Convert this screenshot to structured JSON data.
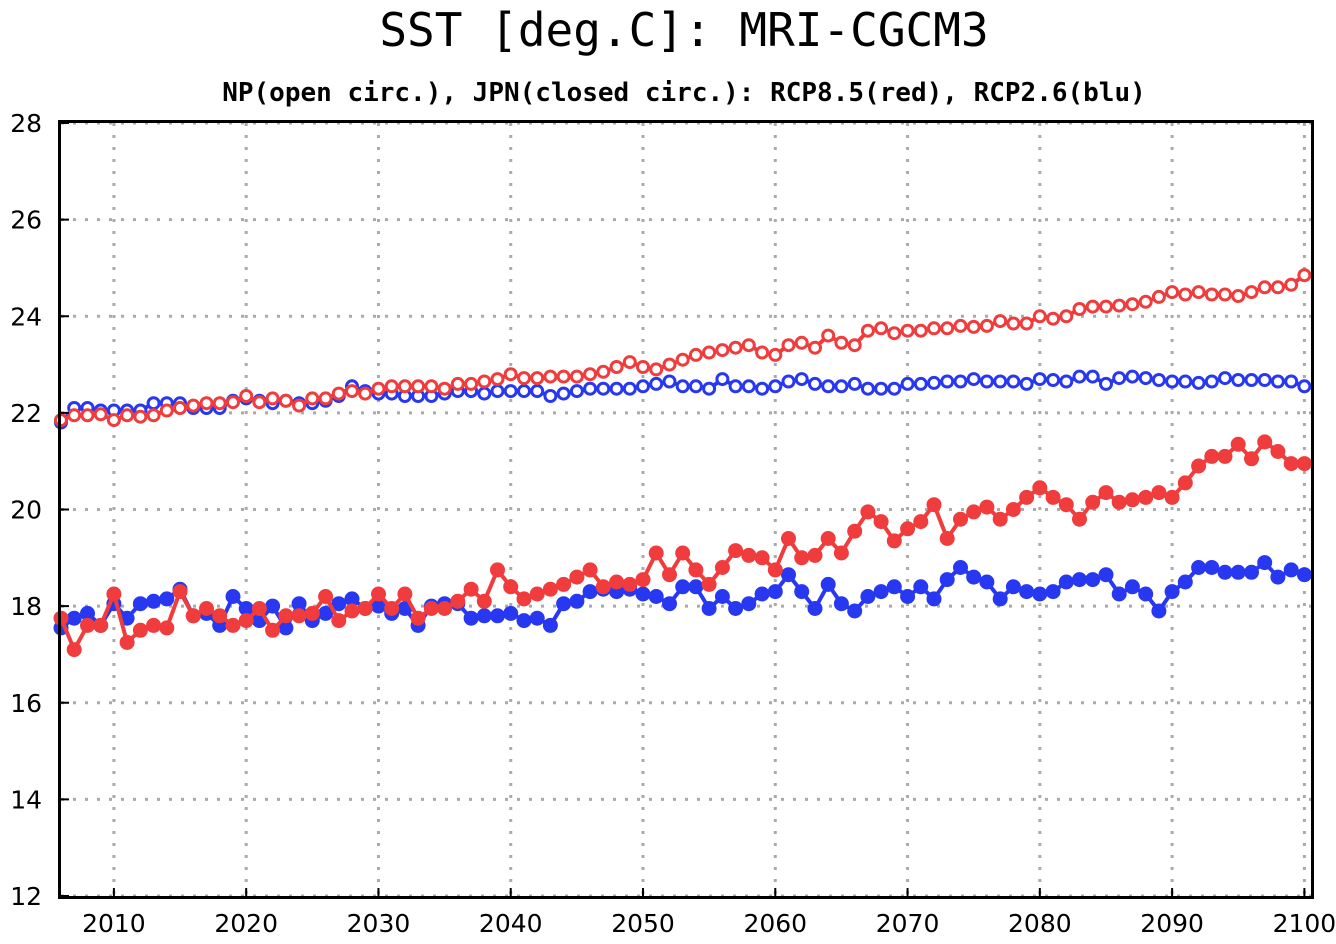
{
  "chart_data": {
    "type": "line",
    "title": "SST [deg.C]: MRI-CGCM3",
    "subtitle": "NP(open circ.), JPN(closed circ.): RCP8.5(red), RCP2.6(blu)",
    "xlabel": "",
    "ylabel": "",
    "xlim": [
      2006,
      2100.5
    ],
    "ylim": [
      12,
      28
    ],
    "grid": true,
    "legend": "none",
    "x_ticks": [
      "2010",
      "2020",
      "2030",
      "2040",
      "2050",
      "2060",
      "2070",
      "2080",
      "2090",
      "2100"
    ],
    "y_ticks": [
      "12",
      "14",
      "16",
      "18",
      "20",
      "22",
      "24",
      "26",
      "28"
    ],
    "colors": {
      "rcp85": "#f03c3c",
      "rcp26": "#2838f0",
      "grid": "#aaaaaa"
    },
    "x": [
      2006,
      2007,
      2008,
      2009,
      2010,
      2011,
      2012,
      2013,
      2014,
      2015,
      2016,
      2017,
      2018,
      2019,
      2020,
      2021,
      2022,
      2023,
      2024,
      2025,
      2026,
      2027,
      2028,
      2029,
      2030,
      2031,
      2032,
      2033,
      2034,
      2035,
      2036,
      2037,
      2038,
      2039,
      2040,
      2041,
      2042,
      2043,
      2044,
      2045,
      2046,
      2047,
      2048,
      2049,
      2050,
      2051,
      2052,
      2053,
      2054,
      2055,
      2056,
      2057,
      2058,
      2059,
      2060,
      2061,
      2062,
      2063,
      2064,
      2065,
      2066,
      2067,
      2068,
      2069,
      2070,
      2071,
      2072,
      2073,
      2074,
      2075,
      2076,
      2077,
      2078,
      2079,
      2080,
      2081,
      2082,
      2083,
      2084,
      2085,
      2086,
      2087,
      2088,
      2089,
      2090,
      2091,
      2092,
      2093,
      2094,
      2095,
      2096,
      2097,
      2098,
      2099,
      2100
    ],
    "series": [
      {
        "region": "NP",
        "scenario": "RCP8.5",
        "color": "#f03c3c",
        "marker": "open",
        "values": [
          21.85,
          21.95,
          21.95,
          21.97,
          21.85,
          21.95,
          21.92,
          21.95,
          22.05,
          22.1,
          22.15,
          22.2,
          22.2,
          22.22,
          22.35,
          22.22,
          22.3,
          22.25,
          22.15,
          22.3,
          22.3,
          22.4,
          22.45,
          22.4,
          22.5,
          22.55,
          22.55,
          22.55,
          22.55,
          22.5,
          22.6,
          22.6,
          22.65,
          22.7,
          22.8,
          22.72,
          22.72,
          22.75,
          22.75,
          22.75,
          22.8,
          22.85,
          22.95,
          23.05,
          22.95,
          22.9,
          23.0,
          23.1,
          23.2,
          23.25,
          23.3,
          23.35,
          23.4,
          23.25,
          23.2,
          23.4,
          23.45,
          23.35,
          23.6,
          23.45,
          23.4,
          23.7,
          23.75,
          23.65,
          23.7,
          23.7,
          23.75,
          23.75,
          23.8,
          23.78,
          23.8,
          23.9,
          23.85,
          23.85,
          24.0,
          23.95,
          24.0,
          24.15,
          24.2,
          24.2,
          24.22,
          24.25,
          24.3,
          24.4,
          24.5,
          24.45,
          24.5,
          24.45,
          24.45,
          24.42,
          24.5,
          24.6,
          24.6,
          24.65,
          24.85
        ]
      },
      {
        "region": "NP",
        "scenario": "RCP2.6",
        "color": "#2838f0",
        "marker": "open",
        "values": [
          21.8,
          22.1,
          22.1,
          22.05,
          22.05,
          22.05,
          22.05,
          22.2,
          22.2,
          22.2,
          22.1,
          22.1,
          22.1,
          22.25,
          22.3,
          22.25,
          22.2,
          22.25,
          22.2,
          22.2,
          22.25,
          22.35,
          22.55,
          22.45,
          22.4,
          22.4,
          22.35,
          22.35,
          22.35,
          22.4,
          22.45,
          22.45,
          22.4,
          22.45,
          22.45,
          22.45,
          22.45,
          22.35,
          22.4,
          22.45,
          22.5,
          22.5,
          22.5,
          22.5,
          22.55,
          22.6,
          22.65,
          22.55,
          22.55,
          22.5,
          22.7,
          22.55,
          22.55,
          22.5,
          22.55,
          22.65,
          22.7,
          22.6,
          22.55,
          22.55,
          22.6,
          22.5,
          22.5,
          22.5,
          22.6,
          22.6,
          22.62,
          22.65,
          22.65,
          22.7,
          22.65,
          22.65,
          22.65,
          22.6,
          22.7,
          22.68,
          22.65,
          22.75,
          22.75,
          22.6,
          22.72,
          22.75,
          22.72,
          22.68,
          22.65,
          22.65,
          22.62,
          22.65,
          22.72,
          22.68,
          22.68,
          22.68,
          22.65,
          22.65,
          22.55
        ]
      },
      {
        "region": "JPN",
        "scenario": "RCP8.5",
        "color": "#f03c3c",
        "marker": "closed",
        "values": [
          17.75,
          17.1,
          17.6,
          17.6,
          18.25,
          17.25,
          17.5,
          17.6,
          17.55,
          18.3,
          17.8,
          17.95,
          17.8,
          17.6,
          17.7,
          17.95,
          17.5,
          17.8,
          17.8,
          17.85,
          18.2,
          17.7,
          17.9,
          17.95,
          18.25,
          17.95,
          18.25,
          17.75,
          17.95,
          17.95,
          18.1,
          18.35,
          18.1,
          18.75,
          18.4,
          18.15,
          18.25,
          18.35,
          18.45,
          18.6,
          18.75,
          18.4,
          18.5,
          18.45,
          18.55,
          19.1,
          18.65,
          19.1,
          18.75,
          18.45,
          18.8,
          19.15,
          19.05,
          19.0,
          18.75,
          19.4,
          19.0,
          19.05,
          19.4,
          19.1,
          19.55,
          19.95,
          19.75,
          19.35,
          19.6,
          19.75,
          20.1,
          19.4,
          19.8,
          19.95,
          20.05,
          19.8,
          20.0,
          20.25,
          20.45,
          20.25,
          20.1,
          19.8,
          20.15,
          20.35,
          20.15,
          20.2,
          20.25,
          20.35,
          20.25,
          20.55,
          20.9,
          21.1,
          21.1,
          21.35,
          21.05,
          21.4,
          21.2,
          20.95,
          20.95
        ]
      },
      {
        "region": "JPN",
        "scenario": "RCP2.6",
        "color": "#2838f0",
        "marker": "closed",
        "values": [
          17.55,
          17.75,
          17.85,
          17.6,
          18.05,
          17.75,
          18.05,
          18.1,
          18.15,
          18.35,
          17.8,
          17.85,
          17.6,
          18.2,
          17.95,
          17.7,
          18.0,
          17.55,
          18.05,
          17.7,
          17.85,
          18.05,
          18.15,
          17.95,
          18.0,
          17.85,
          17.95,
          17.6,
          18.0,
          18.05,
          18.05,
          17.75,
          17.8,
          17.8,
          17.85,
          17.7,
          17.75,
          17.6,
          18.05,
          18.1,
          18.3,
          18.35,
          18.3,
          18.35,
          18.25,
          18.2,
          18.05,
          18.4,
          18.4,
          17.95,
          18.2,
          17.95,
          18.05,
          18.25,
          18.3,
          18.65,
          18.3,
          17.95,
          18.45,
          18.05,
          17.9,
          18.2,
          18.3,
          18.4,
          18.2,
          18.4,
          18.15,
          18.55,
          18.8,
          18.6,
          18.5,
          18.15,
          18.4,
          18.3,
          18.25,
          18.3,
          18.5,
          18.55,
          18.55,
          18.65,
          18.25,
          18.4,
          18.25,
          17.9,
          18.3,
          18.5,
          18.8,
          18.8,
          18.7,
          18.7,
          18.7,
          18.9,
          18.6,
          18.75,
          18.65
        ]
      }
    ]
  }
}
